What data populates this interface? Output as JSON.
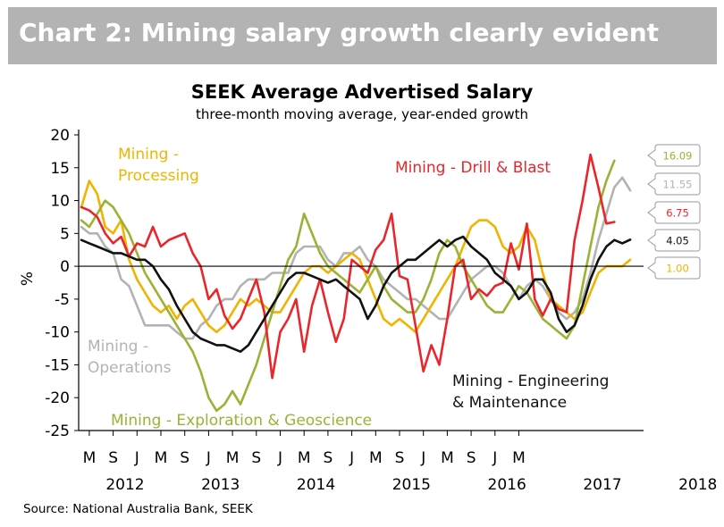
{
  "banner": {
    "title": "Chart 2: Mining salary growth clearly evident"
  },
  "source": "Source: National Australia Bank, SEEK",
  "chart_data": {
    "type": "line",
    "title": "SEEK Average Advertised Salary",
    "subtitle": "three-month moving average, year-ended growth",
    "ylabel": "%",
    "ylim": [
      -25,
      20
    ],
    "yticks": [
      20,
      15,
      10,
      5,
      0,
      -5,
      -10,
      -15,
      -20,
      -25
    ],
    "x_month_labels": [
      "M",
      "S",
      "J",
      "M",
      "S",
      "J",
      "M",
      "S",
      "J",
      "M",
      "S",
      "J",
      "M",
      "S",
      "J",
      "M",
      "S",
      "J",
      "M"
    ],
    "years": [
      "2012",
      "2013",
      "2014",
      "2015",
      "2016",
      "2017",
      "2018"
    ],
    "x_start": "2012-02",
    "series": [
      {
        "name": "Mining - Drill & Blast",
        "label_lines": [
          "Mining - Drill & Blast"
        ],
        "color": "#e8262b",
        "end_label": "6.75",
        "values": [
          9,
          8.5,
          7.5,
          5,
          3.5,
          4.5,
          1.5,
          3.5,
          3,
          6,
          3,
          4,
          4.5,
          5,
          2,
          0,
          -5,
          -3.5,
          -7.5,
          -9.5,
          -8,
          -5,
          -2,
          -7,
          -17,
          -10,
          -8,
          -5,
          -13,
          -6,
          -2,
          -7,
          -11.5,
          -8,
          1,
          0,
          -1,
          2.5,
          4,
          8,
          -1.5,
          -2,
          -9,
          -16,
          -12,
          -15,
          -8,
          0,
          1,
          -5,
          -3.5,
          -4.5,
          -3,
          -2.5,
          3.5,
          -0.5,
          6.5,
          -5,
          -7.5,
          -5,
          -6.5,
          -7,
          4,
          10,
          17,
          12,
          6.5,
          6.75
        ]
      },
      {
        "name": "Mining - Processing",
        "label_lines": [
          "Mining -",
          "Processing"
        ],
        "color": "#f0b400",
        "end_label": "1.00",
        "values": [
          9,
          13,
          11,
          6,
          5,
          7,
          1,
          -2,
          -4,
          -6,
          -7,
          -6,
          -8,
          -6,
          -5,
          -7,
          -9,
          -10,
          -9,
          -7,
          -5,
          -6,
          -5,
          -6,
          -7,
          -7,
          -5,
          -3,
          -1,
          0,
          0,
          -1,
          0,
          1,
          2,
          1,
          -2,
          -5,
          -8,
          -9,
          -8,
          -9,
          -10,
          -8,
          -6,
          -4,
          -2,
          0,
          3,
          6,
          7,
          7,
          6,
          3,
          2,
          3,
          6,
          4,
          -1,
          -5,
          -6,
          -7,
          -8,
          -7,
          -4,
          -1,
          0,
          0,
          0,
          1
        ]
      },
      {
        "name": "Mining - Operations",
        "label_lines": [
          "Mining -",
          "Operations"
        ],
        "color": "#b3b3b3",
        "end_label": "11.55",
        "values": [
          6,
          5,
          5,
          3,
          2,
          -2,
          -3,
          -6,
          -9,
          -9,
          -9,
          -9,
          -10,
          -11,
          -11,
          -9,
          -8,
          -6,
          -5,
          -5,
          -3,
          -2,
          -2,
          -2,
          -1,
          -1,
          -1,
          2,
          3,
          3,
          3,
          1,
          0,
          2,
          2,
          3,
          1,
          0,
          -2,
          -3,
          -4,
          -5,
          -5,
          -6,
          -7,
          -8,
          -8,
          -6,
          -4,
          -2,
          -1,
          0,
          0,
          -1,
          -3,
          -5,
          -3,
          -2,
          -3,
          -5,
          -7,
          -8,
          -7,
          -5,
          -1,
          4,
          8,
          12,
          13.5,
          11.55
        ]
      },
      {
        "name": "Mining - Exploration & Geoscience",
        "label_lines": [
          "Mining - Exploration & Geoscience"
        ],
        "color": "#9bb234",
        "end_label": "16.09",
        "values": [
          7,
          6,
          8,
          10,
          9,
          7,
          5,
          2,
          -1,
          -3,
          -5,
          -7,
          -9,
          -11,
          -13,
          -16,
          -20,
          -22,
          -21,
          -19,
          -21,
          -18,
          -15,
          -11,
          -7,
          -3,
          1,
          3,
          8,
          5,
          2,
          0,
          -1,
          -2,
          -3,
          -4,
          -2,
          0,
          -3,
          -5,
          -6,
          -7,
          -7,
          -5,
          -2,
          2,
          4,
          3,
          0,
          -2,
          -4,
          -6,
          -7,
          -7,
          -5,
          -3,
          -4,
          -6,
          -8,
          -9,
          -10,
          -11,
          -9,
          -3,
          3,
          9,
          13,
          16.09
        ]
      },
      {
        "name": "Mining - Engineering & Maintenance",
        "label_lines": [
          "Mining - Engineering",
          "& Maintenance"
        ],
        "color": "#111111",
        "end_label": "4.05",
        "values": [
          4,
          3.5,
          3,
          2.5,
          2,
          2,
          1.5,
          1,
          1,
          0,
          -2,
          -3.5,
          -6,
          -8,
          -10,
          -11,
          -11.5,
          -12,
          -12,
          -12.5,
          -13,
          -12,
          -10,
          -8,
          -6,
          -4,
          -2,
          -1,
          -1,
          -1.5,
          -2,
          -2.5,
          -2,
          -3,
          -4,
          -5,
          -8,
          -6,
          -3,
          -1,
          0,
          1,
          1,
          2,
          3,
          4,
          3,
          4,
          4.5,
          3,
          2,
          1,
          -1,
          -2,
          -3,
          -5,
          -4,
          -2,
          -2,
          -4,
          -8,
          -10,
          -9,
          -6,
          -2,
          1,
          3,
          4,
          3.5,
          4.05
        ]
      }
    ]
  }
}
